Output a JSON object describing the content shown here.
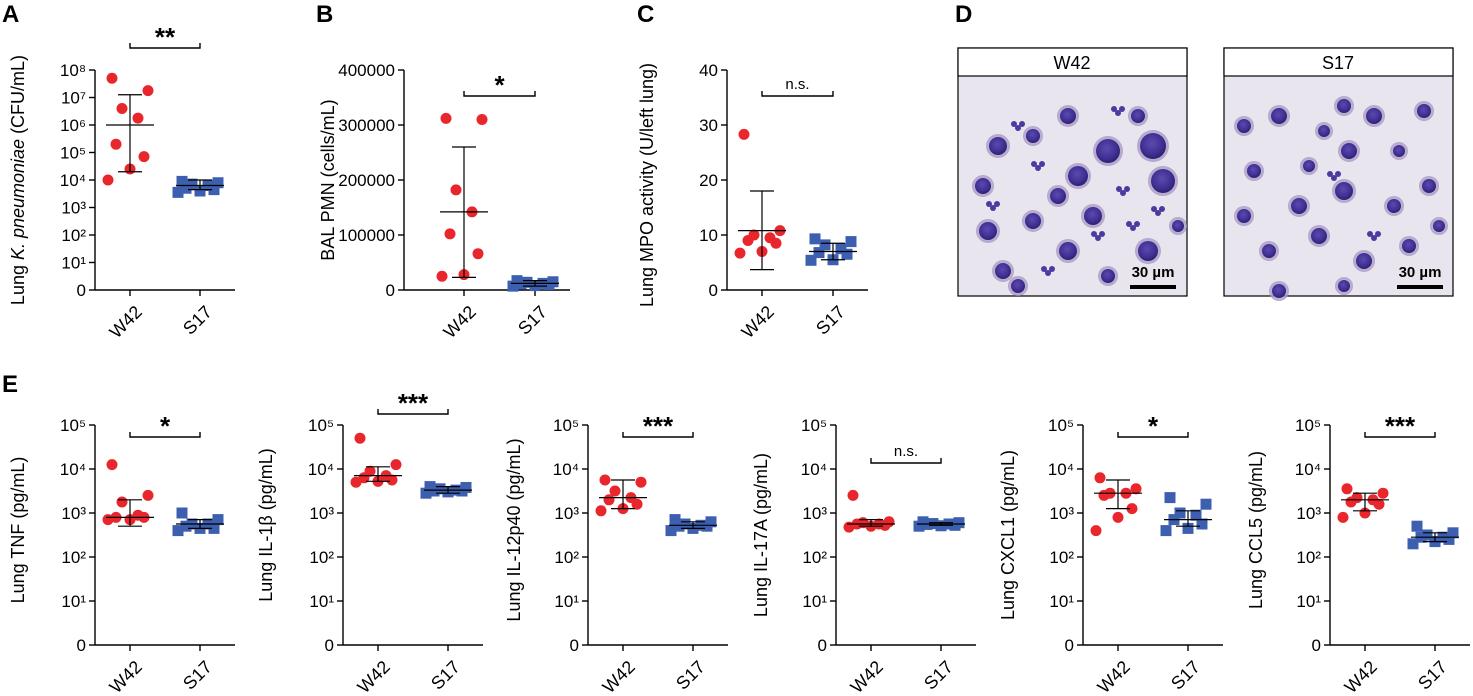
{
  "colors": {
    "W42": "#e8262b",
    "S17": "#3d5fb0",
    "axis": "#000000"
  },
  "chart_data": [
    {
      "id": "A",
      "type": "scatter",
      "scale": "log",
      "ylabel_parts": [
        "Lung ",
        "K. pneumoniae",
        " (CFU/mL)"
      ],
      "yticks": [
        "0",
        "10¹",
        "10²",
        "10³",
        "10⁴",
        "10⁵",
        "10⁶",
        "10⁷",
        "10⁸"
      ],
      "ytick_values": [
        0,
        1,
        2,
        3,
        4,
        5,
        6,
        7,
        8
      ],
      "categories": [
        "W42",
        "S17"
      ],
      "significance": "**",
      "series": [
        {
          "name": "W42",
          "marker": "circle",
          "points": [
            7.7,
            7.25,
            6.6,
            6.25,
            5.3,
            4.85,
            4.4,
            4.0
          ],
          "mean": 6.0,
          "err_lo": 4.3,
          "err_hi": 7.1
        },
        {
          "name": "S17",
          "marker": "square",
          "points": [
            3.95,
            3.9,
            3.85,
            3.8,
            3.7,
            3.65,
            3.6,
            3.55
          ],
          "mean": 3.8,
          "err_lo": 3.65,
          "err_hi": 4.0
        }
      ]
    },
    {
      "id": "B",
      "type": "scatter",
      "scale": "linear",
      "ylabel": "BAL PMN (cells/mL)",
      "yticks": [
        "0",
        "100000",
        "200000",
        "300000",
        "400000"
      ],
      "ytick_values": [
        0,
        100000,
        200000,
        300000,
        400000
      ],
      "categories": [
        "W42",
        "S17"
      ],
      "significance": "*",
      "series": [
        {
          "name": "W42",
          "marker": "circle",
          "points": [
            312000,
            310000,
            182000,
            142000,
            102000,
            66000,
            28000,
            25000
          ],
          "mean": 142000,
          "err_lo": 23000,
          "err_hi": 260000
        },
        {
          "name": "S17",
          "marker": "square",
          "points": [
            17000,
            15000,
            14000,
            12000,
            11000,
            10000,
            8000,
            7000
          ],
          "mean": 12000,
          "err_lo": 7000,
          "err_hi": 17000
        }
      ]
    },
    {
      "id": "C",
      "type": "scatter",
      "scale": "linear",
      "ylabel": "Lung MPO activity (U/left lung)",
      "yticks": [
        "0",
        "10",
        "20",
        "30",
        "40"
      ],
      "ytick_values": [
        0,
        10,
        20,
        30,
        40
      ],
      "categories": [
        "W42",
        "S17"
      ],
      "significance": "n.s.",
      "series": [
        {
          "name": "W42",
          "marker": "circle",
          "points": [
            28.3,
            10.8,
            10.0,
            9.5,
            9.0,
            8.5,
            7.0,
            6.7
          ],
          "mean": 10.8,
          "err_lo": 3.7,
          "err_hi": 18.0
        },
        {
          "name": "S17",
          "marker": "square",
          "points": [
            9.3,
            8.8,
            8.2,
            7.5,
            6.8,
            6.5,
            5.5,
            5.4
          ],
          "mean": 7.0,
          "err_lo": 5.5,
          "err_hi": 8.5
        }
      ]
    },
    {
      "id": "E1",
      "type": "scatter",
      "scale": "log",
      "ylabel": "Lung TNF (pg/mL)",
      "yticks": [
        "0",
        "10¹",
        "10²",
        "10³",
        "10⁴",
        "10⁵"
      ],
      "ytick_values": [
        0,
        1,
        2,
        3,
        4,
        5
      ],
      "categories": [
        "W42",
        "S17"
      ],
      "significance": "*",
      "series": [
        {
          "name": "W42",
          "marker": "circle",
          "points": [
            4.1,
            3.4,
            3.25,
            2.95,
            2.9,
            2.9,
            2.85,
            2.85
          ],
          "mean": 2.9,
          "err_lo": 2.7,
          "err_hi": 3.3
        },
        {
          "name": "S17",
          "marker": "square",
          "points": [
            3.0,
            2.85,
            2.75,
            2.75,
            2.7,
            2.65,
            2.65,
            2.6
          ],
          "mean": 2.75,
          "err_lo": 2.65,
          "err_hi": 2.85
        }
      ]
    },
    {
      "id": "E2",
      "type": "scatter",
      "scale": "log",
      "ylabel_parts": [
        "Lung IL-1",
        "β",
        " (pg/mL)"
      ],
      "yticks": [
        "0",
        "10¹",
        "10²",
        "10³",
        "10⁴",
        "10⁵"
      ],
      "ytick_values": [
        0,
        1,
        2,
        3,
        4,
        5
      ],
      "categories": [
        "W42",
        "S17"
      ],
      "significance": "***",
      "series": [
        {
          "name": "W42",
          "marker": "circle",
          "points": [
            4.7,
            4.1,
            3.95,
            3.85,
            3.8,
            3.75,
            3.72,
            3.7
          ],
          "mean": 3.85,
          "err_lo": 3.72,
          "err_hi": 4.05
        },
        {
          "name": "S17",
          "marker": "square",
          "points": [
            3.6,
            3.58,
            3.55,
            3.52,
            3.5,
            3.5,
            3.48,
            3.45
          ],
          "mean": 3.52,
          "err_lo": 3.45,
          "err_hi": 3.6
        }
      ]
    },
    {
      "id": "E3",
      "type": "scatter",
      "scale": "log",
      "ylabel": "Lung IL-12p40 (pg/mL)",
      "yticks": [
        "0",
        "10¹",
        "10²",
        "10³",
        "10⁴",
        "10⁵"
      ],
      "ytick_values": [
        0,
        1,
        2,
        3,
        4,
        5
      ],
      "categories": [
        "W42",
        "S17"
      ],
      "significance": "***",
      "series": [
        {
          "name": "W42",
          "marker": "circle",
          "points": [
            3.75,
            3.7,
            3.5,
            3.35,
            3.3,
            3.2,
            3.1,
            3.05
          ],
          "mean": 3.35,
          "err_lo": 3.1,
          "err_hi": 3.75
        },
        {
          "name": "S17",
          "marker": "square",
          "points": [
            2.85,
            2.8,
            2.75,
            2.72,
            2.7,
            2.7,
            2.65,
            2.6
          ],
          "mean": 2.72,
          "err_lo": 2.65,
          "err_hi": 2.8
        }
      ]
    },
    {
      "id": "E4",
      "type": "scatter",
      "scale": "log",
      "ylabel": "Lung IL-17A (pg/mL)",
      "yticks": [
        "0",
        "10¹",
        "10²",
        "10³",
        "10⁴",
        "10⁵"
      ],
      "ytick_values": [
        0,
        1,
        2,
        3,
        4,
        5
      ],
      "categories": [
        "W42",
        "S17"
      ],
      "significance": "n.s.",
      "series": [
        {
          "name": "W42",
          "marker": "circle",
          "points": [
            3.4,
            2.8,
            2.78,
            2.75,
            2.75,
            2.72,
            2.7,
            2.68
          ],
          "mean": 2.75,
          "err_lo": 2.7,
          "err_hi": 2.85
        },
        {
          "name": "S17",
          "marker": "square",
          "points": [
            2.8,
            2.78,
            2.76,
            2.75,
            2.74,
            2.72,
            2.71,
            2.7
          ],
          "mean": 2.75,
          "err_lo": 2.72,
          "err_hi": 2.78
        }
      ]
    },
    {
      "id": "E5",
      "type": "scatter",
      "scale": "log",
      "ylabel": "Lung CXCL1 (pg/mL)",
      "yticks": [
        "0",
        "10¹",
        "10²",
        "10³",
        "10⁴",
        "10⁵"
      ],
      "ytick_values": [
        0,
        1,
        2,
        3,
        4,
        5
      ],
      "categories": [
        "W42",
        "S17"
      ],
      "significance": "*",
      "series": [
        {
          "name": "W42",
          "marker": "circle",
          "points": [
            3.8,
            3.55,
            3.45,
            3.45,
            3.4,
            3.1,
            2.9,
            2.6
          ],
          "mean": 3.45,
          "err_lo": 3.1,
          "err_hi": 3.75
        },
        {
          "name": "S17",
          "marker": "square",
          "points": [
            3.35,
            3.2,
            3.0,
            2.95,
            2.85,
            2.75,
            2.65,
            2.6
          ],
          "mean": 2.85,
          "err_lo": 2.7,
          "err_hi": 3.05
        }
      ]
    },
    {
      "id": "E6",
      "type": "scatter",
      "scale": "log",
      "ylabel": "Lung CCL5 (pg/mL)",
      "yticks": [
        "0",
        "10¹",
        "10²",
        "10³",
        "10⁴",
        "10⁵"
      ],
      "ytick_values": [
        0,
        1,
        2,
        3,
        4,
        5
      ],
      "categories": [
        "W42",
        "S17"
      ],
      "significance": "***",
      "series": [
        {
          "name": "W42",
          "marker": "circle",
          "points": [
            3.55,
            3.45,
            3.35,
            3.3,
            3.25,
            3.2,
            3.0,
            2.9
          ],
          "mean": 3.3,
          "err_lo": 3.05,
          "err_hi": 3.45
        },
        {
          "name": "S17",
          "marker": "square",
          "points": [
            2.7,
            2.55,
            2.5,
            2.45,
            2.45,
            2.4,
            2.35,
            2.3
          ],
          "mean": 2.45,
          "err_lo": 2.35,
          "err_hi": 2.55
        }
      ]
    }
  ],
  "panel_letters": {
    "A": "A",
    "B": "B",
    "C": "C",
    "D": "D",
    "E": "E"
  },
  "micrographs": [
    {
      "title": "W42",
      "scale_label": "30 µm"
    },
    {
      "title": "S17",
      "scale_label": "30 µm"
    }
  ]
}
